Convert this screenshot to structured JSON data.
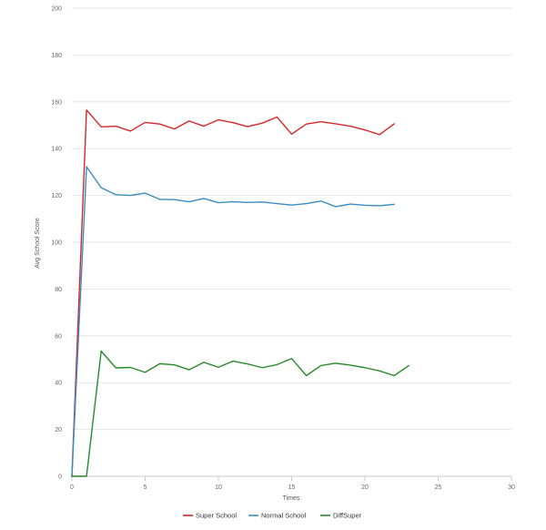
{
  "chart_data": {
    "type": "line",
    "title": "",
    "xlabel": "Times",
    "ylabel": "Avg School Score",
    "xlim": [
      0,
      30
    ],
    "ylim": [
      0,
      200
    ],
    "x_ticks": [
      0,
      5,
      10,
      15,
      20,
      25,
      30
    ],
    "y_ticks": [
      0,
      20,
      40,
      60,
      80,
      100,
      120,
      140,
      160,
      180,
      200
    ],
    "x_tick_labels": [
      "0",
      "5",
      "10",
      "15",
      "20",
      "25",
      "30"
    ],
    "y_tick_labels": [
      "0",
      "20",
      "40",
      "60",
      "80",
      "100",
      "120",
      "140",
      "160",
      "180",
      "200"
    ],
    "grid": true,
    "legend_position": "bottom",
    "series": [
      {
        "name": "Super School",
        "color": "#d62728",
        "x": [
          0,
          1,
          2,
          3,
          4,
          5,
          6,
          7,
          8,
          9,
          10,
          11,
          12,
          13,
          14,
          15,
          16,
          17,
          18,
          19,
          20,
          21,
          22
        ],
        "values": [
          0,
          156.5,
          149.3,
          149.6,
          147.5,
          151.2,
          150.5,
          148.4,
          151.8,
          149.6,
          152.3,
          151.1,
          149.4,
          150.9,
          153.5,
          146.2,
          150.5,
          151.5,
          150.6,
          149.6,
          148.0,
          146.0,
          150.6
        ]
      },
      {
        "name": "Normal School",
        "color": "#3a8dc4",
        "x": [
          0,
          1,
          2,
          3,
          4,
          5,
          6,
          7,
          8,
          9,
          10,
          11,
          12,
          13,
          14,
          15,
          16,
          17,
          18,
          19,
          20,
          21,
          22
        ],
        "values": [
          0,
          132.3,
          123.3,
          120.3,
          120.0,
          121.0,
          118.3,
          118.2,
          117.3,
          118.7,
          116.9,
          117.3,
          117.0,
          117.2,
          116.5,
          115.9,
          116.5,
          117.6,
          115.2,
          116.3,
          115.8,
          115.6,
          116.2
        ]
      },
      {
        "name": "DiffSuper",
        "color": "#2a8a2a",
        "x": [
          0,
          1,
          2,
          3,
          4,
          5,
          6,
          7,
          8,
          9,
          10,
          11,
          12,
          13,
          14,
          15,
          16,
          17,
          18,
          19,
          20,
          21,
          22,
          23
        ],
        "values": [
          0,
          0,
          53.5,
          46.3,
          46.5,
          44.4,
          48.1,
          47.6,
          45.5,
          48.7,
          46.6,
          49.2,
          48.0,
          46.4,
          47.7,
          50.3,
          43.0,
          47.3,
          48.3,
          47.5,
          46.4,
          45.0,
          43.0,
          47.3
        ]
      }
    ]
  }
}
